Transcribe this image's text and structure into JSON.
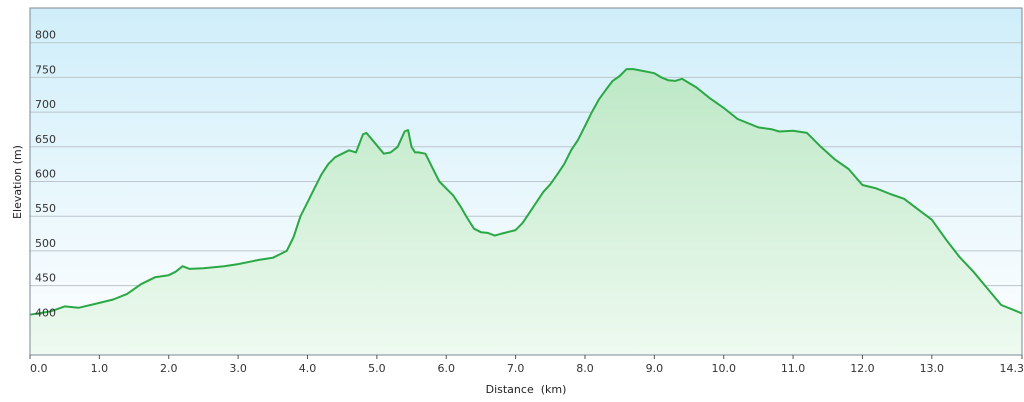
{
  "chart_data": {
    "type": "area",
    "title": "",
    "xlabel": "Distance  (km)",
    "ylabel": "Elevation (m)",
    "xlim": [
      0,
      14.3
    ],
    "ylim": [
      350,
      850
    ],
    "grid": true,
    "legend": "none",
    "x_ticks": [
      "0.0",
      "1.0",
      "2.0",
      "3.0",
      "4.0",
      "5.0",
      "6.0",
      "7.0",
      "8.0",
      "9.0",
      "10.0",
      "11.0",
      "12.0",
      "13.0",
      "14.3"
    ],
    "x_tick_values": [
      0,
      1,
      2,
      3,
      4,
      5,
      6,
      7,
      8,
      9,
      10,
      11,
      12,
      13,
      14.3
    ],
    "y_ticks": [
      "400",
      "450",
      "500",
      "550",
      "600",
      "650",
      "700",
      "750",
      "800"
    ],
    "y_tick_values": [
      400,
      450,
      500,
      550,
      600,
      650,
      700,
      750,
      800
    ],
    "colors": {
      "line": "#2aa844",
      "fill_top": "#bde8c6",
      "fill_bottom": "#eefaf0",
      "bg_top": "#cfeefa",
      "bg_bottom": "#ffffff",
      "grid": "#bcc6cc",
      "frame": "#7a8a96"
    },
    "series": [
      {
        "x": [
          0.0,
          0.3,
          0.5,
          0.7,
          1.0,
          1.2,
          1.4,
          1.6,
          1.8,
          2.0,
          2.1,
          2.2,
          2.3,
          2.5,
          2.8,
          3.0,
          3.2,
          3.3,
          3.5,
          3.7,
          3.8,
          3.9,
          4.0,
          4.1,
          4.2,
          4.3,
          4.4,
          4.5,
          4.6,
          4.7,
          4.8,
          4.85,
          4.95,
          5.1,
          5.2,
          5.3,
          5.4,
          5.45,
          5.5,
          5.55,
          5.6,
          5.7,
          5.8,
          5.9,
          6.0,
          6.1,
          6.2,
          6.3,
          6.4,
          6.5,
          6.6,
          6.7,
          6.8,
          7.0,
          7.1,
          7.2,
          7.3,
          7.4,
          7.5,
          7.6,
          7.7,
          7.8,
          7.9,
          8.0,
          8.1,
          8.2,
          8.3,
          8.4,
          8.5,
          8.6,
          8.7,
          8.8,
          8.9,
          9.0,
          9.1,
          9.2,
          9.3,
          9.4,
          9.5,
          9.6,
          9.8,
          10.0,
          10.2,
          10.5,
          10.7,
          10.8,
          11.0,
          11.2,
          11.4,
          11.6,
          11.8,
          12.0,
          12.2,
          12.4,
          12.6,
          12.8,
          13.0,
          13.2,
          13.4,
          13.6,
          13.8,
          14.0,
          14.2,
          14.3
        ],
        "y": [
          408,
          413,
          420,
          418,
          425,
          430,
          438,
          452,
          462,
          465,
          470,
          478,
          474,
          475,
          478,
          481,
          485,
          487,
          490,
          500,
          520,
          550,
          570,
          590,
          610,
          625,
          635,
          640,
          645,
          642,
          668,
          670,
          658,
          640,
          642,
          650,
          672,
          674,
          650,
          642,
          642,
          640,
          620,
          600,
          590,
          580,
          565,
          548,
          532,
          527,
          526,
          522,
          525,
          530,
          540,
          555,
          570,
          585,
          596,
          610,
          625,
          645,
          660,
          680,
          700,
          718,
          732,
          745,
          752,
          762,
          762,
          760,
          758,
          756,
          750,
          746,
          745,
          748,
          742,
          736,
          720,
          706,
          690,
          678,
          675,
          672,
          673,
          670,
          650,
          632,
          618,
          595,
          590,
          582,
          575,
          560,
          545,
          517,
          491,
          470,
          446,
          422,
          414,
          410
        ]
      }
    ]
  }
}
